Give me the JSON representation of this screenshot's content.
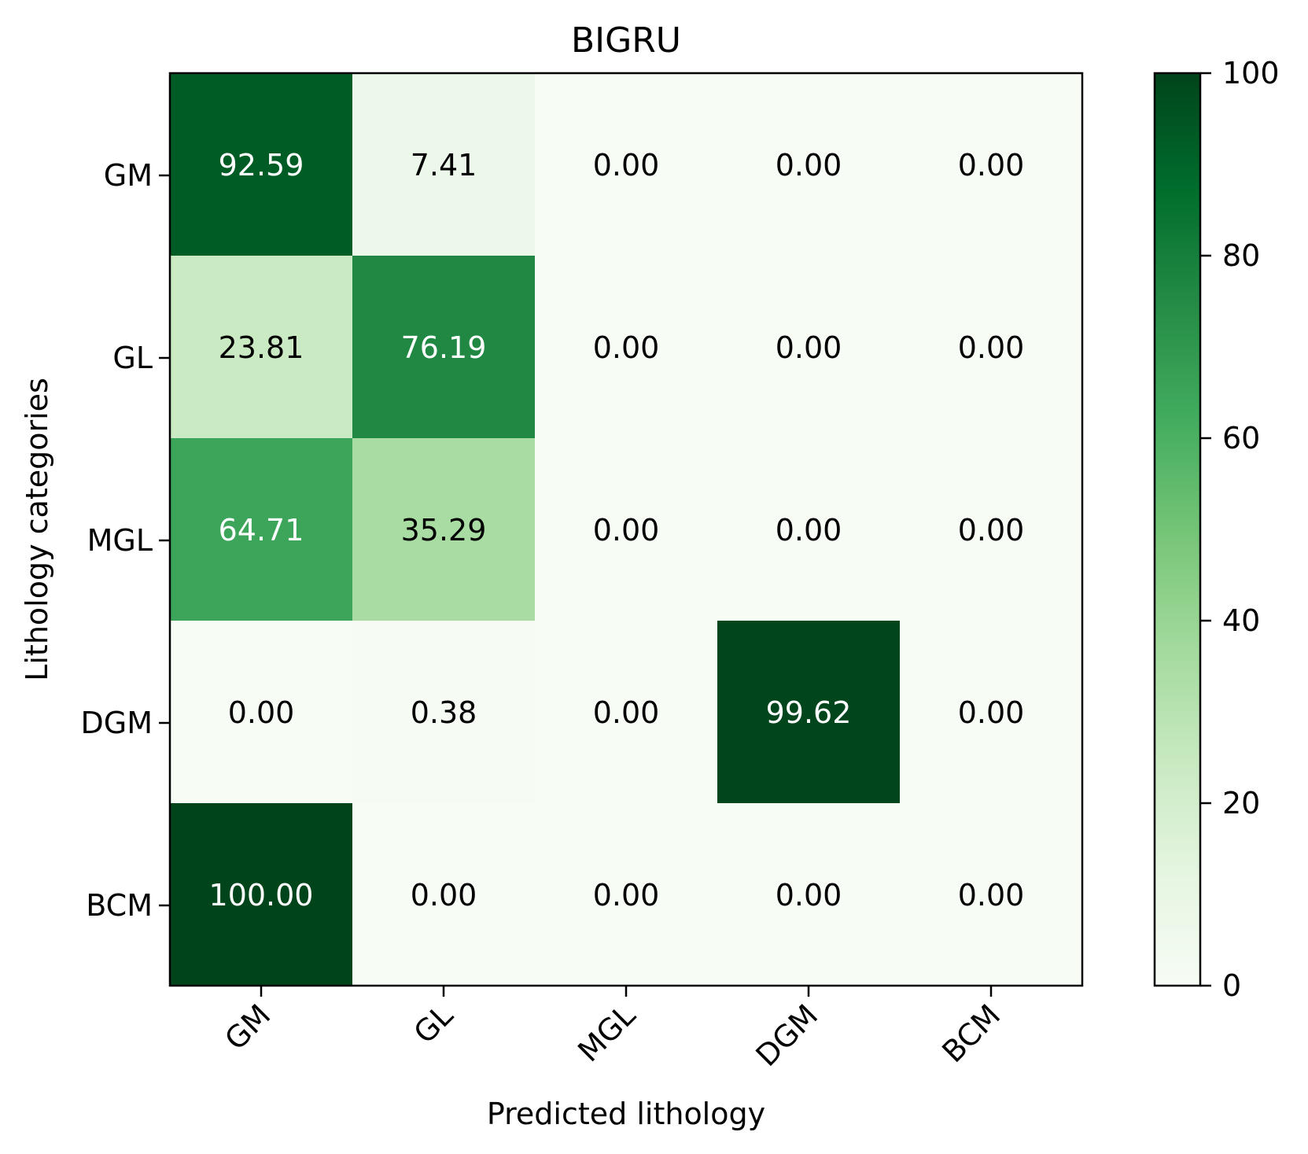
{
  "chart_data": {
    "type": "heatmap",
    "title": "BIGRU",
    "xlabel": "Predicted lithology",
    "ylabel": "Lithology categories",
    "x_categories": [
      "GM",
      "GL",
      "MGL",
      "DGM",
      "BCM"
    ],
    "y_categories": [
      "GM",
      "GL",
      "MGL",
      "DGM",
      "BCM"
    ],
    "values": [
      [
        92.59,
        7.41,
        0.0,
        0.0,
        0.0
      ],
      [
        23.81,
        76.19,
        0.0,
        0.0,
        0.0
      ],
      [
        64.71,
        35.29,
        0.0,
        0.0,
        0.0
      ],
      [
        0.0,
        0.38,
        0.0,
        99.62,
        0.0
      ],
      [
        100.0,
        0.0,
        0.0,
        0.0,
        0.0
      ]
    ],
    "value_format": "2 decimals",
    "colormap": "Greens",
    "color_low": "#f7fcf5",
    "color_high": "#00441b",
    "colorbar": {
      "range": [
        0,
        100
      ],
      "ticks": [
        "0",
        "20",
        "40",
        "60",
        "80",
        "100"
      ]
    }
  }
}
